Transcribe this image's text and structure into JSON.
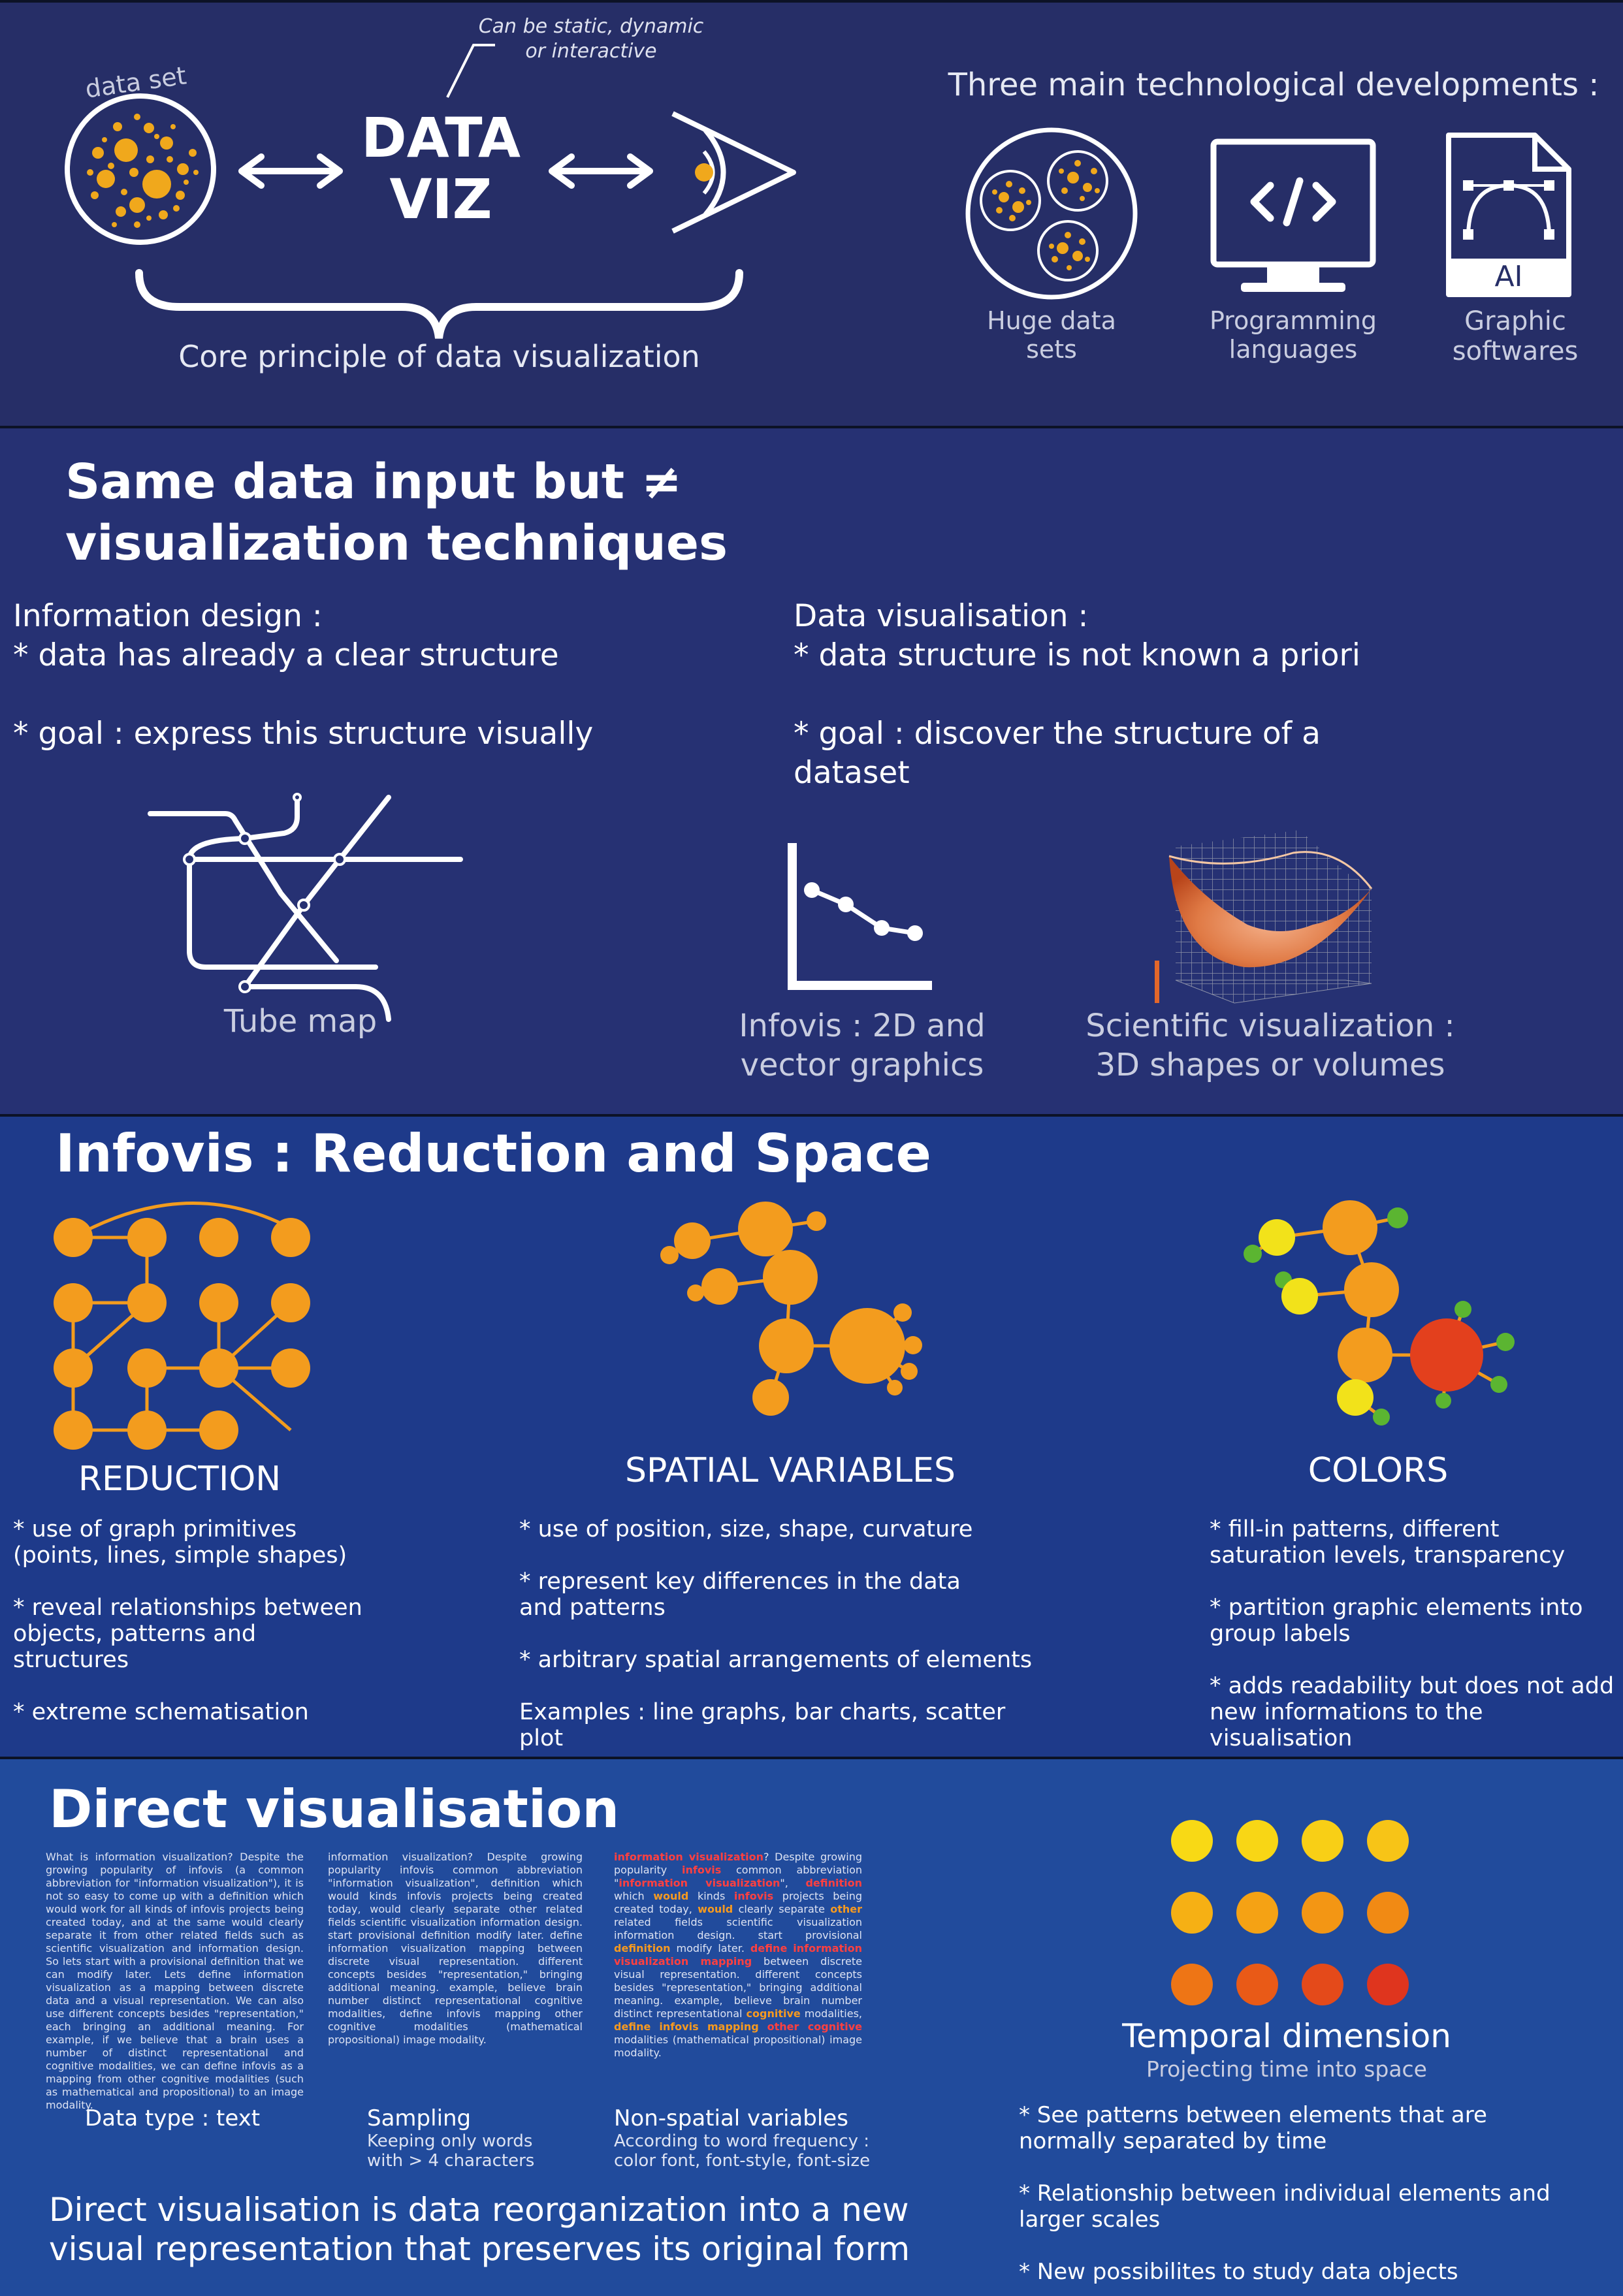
{
  "header": {
    "dataset_label": "data set",
    "dataviz_line1": "DATA",
    "dataviz_line2": "VIZ",
    "note": "Can be static, dynamic or interactive",
    "core_principle": "Core principle of data visualization",
    "tech_title": "Three main technological developments :",
    "tech_items": [
      {
        "label": "Huge data sets",
        "icon": "huge-datasets-icon"
      },
      {
        "label": "Programming languages",
        "icon": "code-monitor-icon"
      },
      {
        "label": "Graphic softwares",
        "icon": "ai-file-icon",
        "badge": "AI"
      }
    ]
  },
  "techniques": {
    "title": "Same data input but ≠ visualization techniques",
    "info_design": {
      "heading": "Information design :",
      "point1": "* data has already a clear structure",
      "point2": "* goal : express this structure visually",
      "caption": "Tube map"
    },
    "data_vis": {
      "heading": "Data visualisation :",
      "point1": "* data structure is not known a priori",
      "point2": "* goal : discover the structure of a dataset",
      "caption_infovis": "Infovis : 2D and vector graphics",
      "caption_scivis": "Scientific visualization : 3D shapes or volumes"
    }
  },
  "infovis": {
    "title": "Infovis : Reduction and Space",
    "columns": [
      {
        "heading": "REDUCTION",
        "points": [
          "* use of graph primitives (points, lines, simple shapes)",
          "* reveal relationships between objects, patterns and structures",
          "* extreme schematisation"
        ]
      },
      {
        "heading": "SPATIAL VARIABLES",
        "points": [
          "* use of position, size, shape, curvature",
          "* represent key differences in the data and patterns",
          "* arbitrary spatial arrangements of elements",
          "Examples : line graphs, bar charts, scatter plot"
        ]
      },
      {
        "heading": "COLORS",
        "points": [
          "* fill-in patterns, different saturation levels, transparency",
          "* partition graphic elements into group labels",
          "* adds readability but does not add new informations to the visualisation"
        ]
      }
    ],
    "palette": {
      "orange": "#f39c1e",
      "yellow": "#f2e21a",
      "green": "#5bb531",
      "red": "#e3401d"
    }
  },
  "direct": {
    "title": "Direct visualisation",
    "text_full": "What is information visualization? Despite the growing popularity of infovis (a common abbreviation for \"information visualization\"), it is not so easy to come up with a definition which would work for all kinds of infovis projects being created today, and at the same would clearly separate it from other related fields such as scientific visualization and information design. So lets start with a provisional definition that we can modify later. Lets define information visualization as a mapping between discrete data and a visual representation. We can also use different concepts besides \"representation,\" each bringing an additional meaning. For example, if we believe that a brain uses a number of distinct representational and cognitive modalities, we can define infovis as a mapping from other cognitive modalities (such as mathematical and propositional) to an image modality.",
    "text_sampled": "information visualization? Despite growing popularity infovis common abbreviation \"information visualization\", definition which would kinds infovis projects being created today, would clearly separate other related fields scientific visualization information design. start provisional definition modify later. define information visualization mapping between discrete visual representation. different concepts besides \"representation,\" bringing additional meaning. example, believe brain number distinct representational cognitive modalities, define infovis mapping other cognitive modalities (mathematical propositional) image modality.",
    "text_styled": [
      {
        "t": "information visualization",
        "c": "r"
      },
      {
        "t": "? Despite growing popularity "
      },
      {
        "t": "infovis",
        "c": "r"
      },
      {
        "t": " common abbreviation \""
      },
      {
        "t": "information visualization",
        "c": "r"
      },
      {
        "t": "\", "
      },
      {
        "t": "definition",
        "c": "r"
      },
      {
        "t": " which "
      },
      {
        "t": "would",
        "c": "o"
      },
      {
        "t": " kinds "
      },
      {
        "t": "infovis",
        "c": "r"
      },
      {
        "t": " projects being created today, "
      },
      {
        "t": "would",
        "c": "o"
      },
      {
        "t": " clearly separate "
      },
      {
        "t": "other",
        "c": "o"
      },
      {
        "t": " related fields scientific visualization information design. start provisional "
      },
      {
        "t": "definition",
        "c": "o"
      },
      {
        "t": " modify later. "
      },
      {
        "t": "define",
        "c": "r"
      },
      {
        "t": " "
      },
      {
        "t": "information visualization mapping",
        "c": "r"
      },
      {
        "t": " between discrete visual representation. different concepts besides \"representation,\" bringing additional meaning. example, believe brain number distinct representational "
      },
      {
        "t": "cognitive",
        "c": "o"
      },
      {
        "t": " modalities, "
      },
      {
        "t": "define",
        "c": "o"
      },
      {
        "t": " "
      },
      {
        "t": "infovis mapping",
        "c": "o"
      },
      {
        "t": " "
      },
      {
        "t": "other cognitive",
        "c": "r"
      },
      {
        "t": " modalities (mathematical propositional) image modality."
      }
    ],
    "col1_label": "Data type : text",
    "col2_label": "Sampling",
    "col2_sub": "Keeping only words with > 4 characters",
    "col3_label": "Non-spatial variables",
    "col3_sub": "According to word frequency : color font, font-style, font-size",
    "conclusion": "Direct visualisation is data reorganization into a new visual representation that preserves its original form",
    "temporal": {
      "title": "Temporal dimension",
      "subtitle": "Projecting time into space",
      "points": [
        "* See patterns between elements that are normally separated by time",
        "* Relationship between individual elements and larger scales",
        "* New possibilites to study data objects"
      ],
      "dot_colors": [
        "#f8d915",
        "#f8d615",
        "#f8cf16",
        "#f7c417",
        "#f6b014",
        "#f5a214",
        "#f39614",
        "#f18a14",
        "#ee7515",
        "#e95a17",
        "#e44a1a",
        "#df351e"
      ]
    }
  }
}
